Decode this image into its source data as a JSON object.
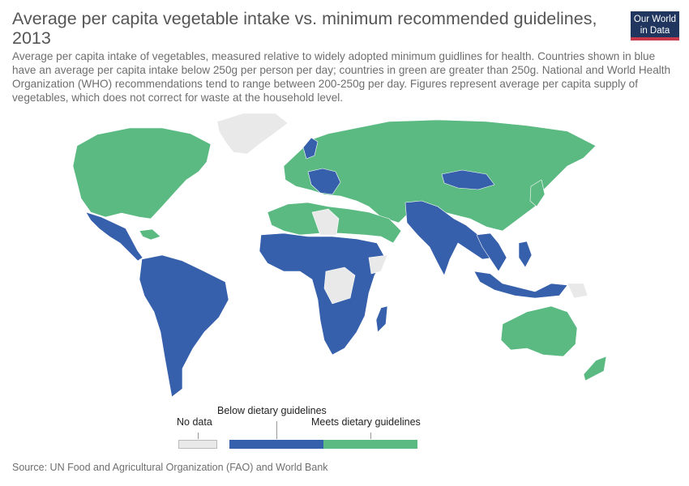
{
  "header": {
    "title": "Average per capita vegetable intake vs. minimum recommended guidelines, 2013",
    "subtitle": "Average per capita intake of vegetables, measured relative to widely adopted minimum guidlines for health. Countries shown in blue have an average per capita intake below 250g per person per day; countries in green are greater than 250g. National and World Health Organization (WHO) recommendations tend to range between 200-250g per day. Figures represent average per capita supply of vegetables, which does not correct for waste at the household level."
  },
  "logo": {
    "line1": "Our World",
    "line2": "in Data"
  },
  "legend": {
    "items": [
      {
        "label": "No data",
        "color": "#e9e9e9"
      },
      {
        "label": "Below dietary guidelines",
        "color": "#3660ac"
      },
      {
        "label": "Meets dietary guidelines",
        "color": "#5bb982"
      }
    ]
  },
  "colors": {
    "below": "#3660ac",
    "meets": "#5bb982",
    "nodata": "#e9e9e9",
    "border": "#ffffff"
  },
  "source": "Source: UN Food and Agricultural Organization (FAO) and World Bank"
}
